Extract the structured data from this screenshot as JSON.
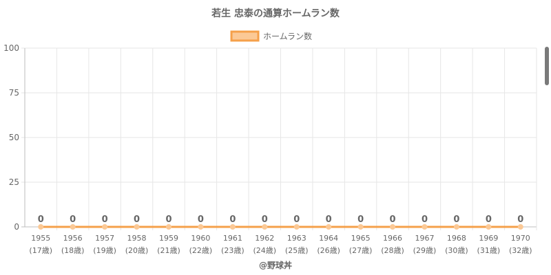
{
  "chart_data": {
    "type": "line",
    "title": "若生 忠泰の通算ホームラン数",
    "legend": {
      "position": "top",
      "label": "ホームラン数"
    },
    "categories": [
      "1955",
      "1956",
      "1957",
      "1958",
      "1959",
      "1960",
      "1961",
      "1962",
      "1963",
      "1964",
      "1965",
      "1966",
      "1967",
      "1968",
      "1969",
      "1970"
    ],
    "sublabels": [
      "(17歳)",
      "(18歳)",
      "(19歳)",
      "(20歳)",
      "(21歳)",
      "(22歳)",
      "(23歳)",
      "(24歳)",
      "(25歳)",
      "(26歳)",
      "(27歳)",
      "(28歳)",
      "(29歳)",
      "(30歳)",
      "(31歳)",
      "(32歳)"
    ],
    "series": [
      {
        "name": "ホームラン数",
        "values": [
          0,
          0,
          0,
          0,
          0,
          0,
          0,
          0,
          0,
          0,
          0,
          0,
          0,
          0,
          0,
          0
        ]
      }
    ],
    "ylim": [
      0,
      100
    ],
    "yticks": [
      0,
      25,
      50,
      75,
      100
    ],
    "grid": true,
    "colors": {
      "line": "#f5a04a",
      "fill": "#fbc996",
      "text": "#666666",
      "grid": "#e6e6e6"
    }
  },
  "footer": {
    "credit": "@野球丼"
  }
}
